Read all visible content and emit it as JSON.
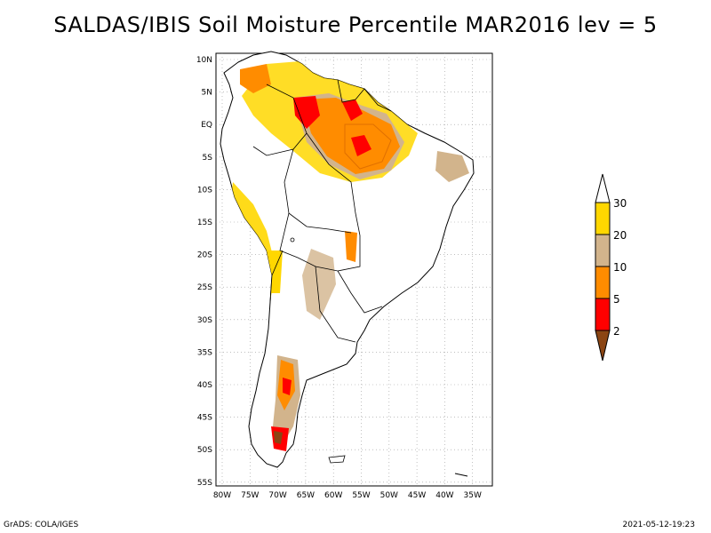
{
  "title": "SALDAS/IBIS Soil Moisture Percentile MAR2016 lev = 5",
  "map": {
    "lat_labels": [
      "10N",
      "5N",
      "EQ",
      "5S",
      "10S",
      "15S",
      "20S",
      "25S",
      "30S",
      "35S",
      "40S",
      "45S",
      "50S",
      "55S"
    ],
    "lon_labels": [
      "80W",
      "75W",
      "70W",
      "65W",
      "60W",
      "55W",
      "50W",
      "45W",
      "40W",
      "35W"
    ]
  },
  "legend": {
    "tick_labels": [
      "30",
      "20",
      "10",
      "5",
      "2"
    ],
    "colors": {
      "above": "#ffffff",
      "c20_30": "#ffd700",
      "c10_20": "#d2b48c",
      "c5_10": "#ff8c00",
      "c2_5": "#ff0000",
      "below": "#8b4513"
    }
  },
  "footer": {
    "left": "GrADS: COLA/IGES",
    "right": "2021-05-12-19:23"
  }
}
